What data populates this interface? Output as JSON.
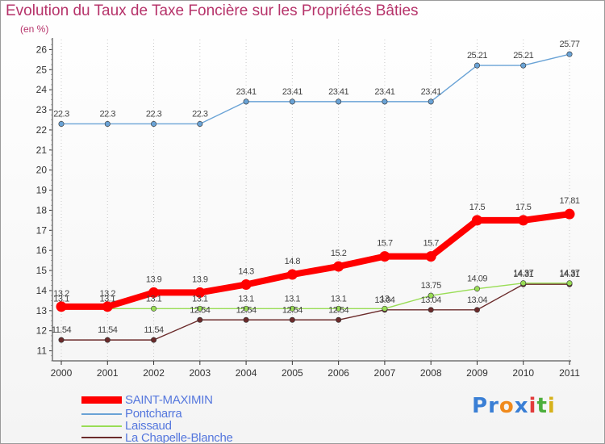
{
  "chart_data": {
    "type": "line",
    "title": "Evolution du Taux de Taxe Foncière sur les Propriétés Bâties",
    "subtitle": "(en %)",
    "x": [
      "2000",
      "2001",
      "2002",
      "2003",
      "2004",
      "2005",
      "2006",
      "2007",
      "2008",
      "2009",
      "2010",
      "2011"
    ],
    "ylim": [
      10.5,
      26.5
    ],
    "yticks": [
      11,
      12,
      13,
      14,
      15,
      16,
      17,
      18,
      19,
      20,
      21,
      22,
      23,
      24,
      25,
      26
    ],
    "grid": "vertical dotted",
    "legend_placement": "bottom-left",
    "series": [
      {
        "name": "SAINT-MAXIMIN",
        "color": "#ff0000",
        "values": [
          13.2,
          13.2,
          13.9,
          13.9,
          14.3,
          14.8,
          15.2,
          15.7,
          15.7,
          17.5,
          17.5,
          17.81
        ],
        "labels": [
          "13.2",
          "13.2",
          "13.9",
          "13.9",
          "14.3",
          "14.8",
          "15.2",
          "15.7",
          "15.7",
          "17.5",
          "17.5",
          "17.81"
        ]
      },
      {
        "name": "Pontcharra",
        "color": "#6aa3d6",
        "values": [
          22.3,
          22.3,
          22.3,
          22.3,
          23.41,
          23.41,
          23.41,
          23.41,
          23.41,
          25.21,
          25.21,
          25.77
        ],
        "labels": [
          "22.3",
          "22.3",
          "22.3",
          "22.3",
          "23.41",
          "23.41",
          "23.41",
          "23.41",
          "23.41",
          "25.21",
          "25.21",
          "25.77"
        ]
      },
      {
        "name": "Laissaud",
        "color": "#99dd55",
        "values": [
          13.1,
          13.1,
          13.1,
          13.1,
          13.1,
          13.1,
          13.1,
          13.1,
          13.75,
          14.09,
          14.37,
          14.37
        ],
        "labels": [
          "13.1",
          "13.1",
          "13.1",
          "13.1",
          "13.1",
          "13.1",
          "13.1",
          "13",
          "13.75",
          "14.09",
          "14.37",
          "14.37"
        ]
      },
      {
        "name": "La Chapelle-Blanche",
        "color": "#6b2b2b",
        "values": [
          11.54,
          11.54,
          11.54,
          12.54,
          12.54,
          12.54,
          12.54,
          13.04,
          13.04,
          13.04,
          14.31,
          14.31
        ],
        "labels": [
          "11.54",
          "11.54",
          "11.54",
          "12.54",
          "12.54",
          "12.54",
          "12.54",
          "13.04",
          "13.04",
          "13.04",
          "14.31",
          "14.31"
        ]
      }
    ]
  },
  "logo": {
    "letters": [
      "P",
      "r",
      "o",
      "x",
      "i",
      "t",
      "i"
    ],
    "colors": [
      "#3a7fd5",
      "#3a7fd5",
      "#f08a1c",
      "#3a7fd5",
      "#e23b3b",
      "#4cae3c",
      "#d6b11a"
    ]
  }
}
